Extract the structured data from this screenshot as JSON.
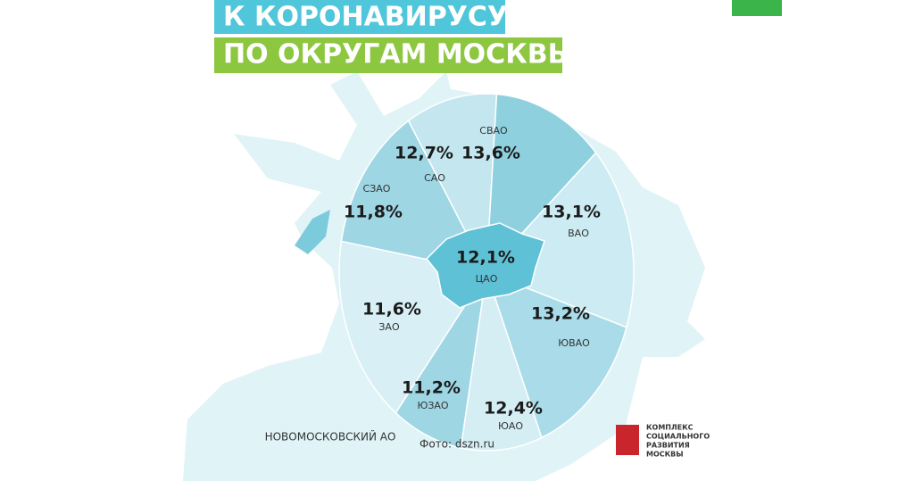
{
  "header": {
    "lines": [
      "К КОРОНАВИРУСУ",
      "ПО ОКРУГАМ МОСКВЫ"
    ]
  },
  "districts": [
    {
      "name": "САО",
      "share": "12,7%"
    },
    {
      "name": "СВАО",
      "share": "13,6%"
    },
    {
      "name": "ВАО",
      "share": "13,1%"
    },
    {
      "name": "ЮВАО",
      "share": "13,2%"
    },
    {
      "name": "ЮАО",
      "share": "12,4%"
    },
    {
      "name": "ЮЗАО",
      "share": "11,2%"
    },
    {
      "name": "ЗАО",
      "share": "11,6%"
    },
    {
      "name": "СЗАО",
      "share": "11,8%"
    },
    {
      "name": "ЦАО",
      "share": "12,1%"
    }
  ],
  "outer_area": "НОВОМОСКОВСКИЙ АО",
  "credit": "Фото: dszn.ru",
  "logo": {
    "lines": [
      "КОМПЛЕКС",
      "СОЦИАЛЬНОГО",
      "РАЗВИТИЯ",
      "МОСКВЫ"
    ]
  }
}
